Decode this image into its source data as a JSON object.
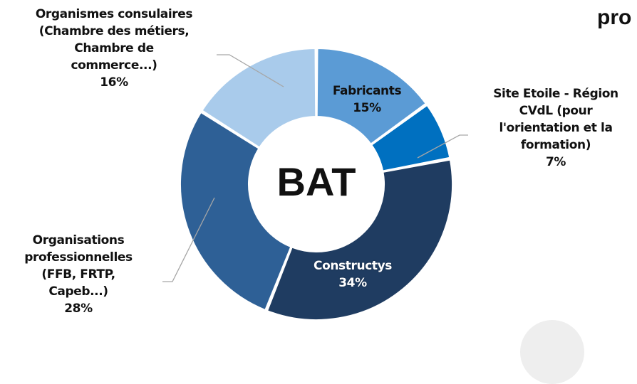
{
  "header_fragment": "pro",
  "chart_data": {
    "type": "donut",
    "center_label": "BAT",
    "slices": [
      {
        "label": [
          "Fabricants"
        ],
        "pct_text": "15%",
        "value": 15,
        "color": "#5b9bd5",
        "label_color": "dark"
      },
      {
        "label": [
          "Site Etoile - Région",
          "CVdL (pour",
          "l'orientation et la",
          "formation)"
        ],
        "pct_text": "7%",
        "value": 7,
        "color": "#0070c0",
        "label_color": "dark"
      },
      {
        "label": [
          "Constructys"
        ],
        "pct_text": "34%",
        "value": 34,
        "color": "#1f3c61",
        "label_color": "light"
      },
      {
        "label": [
          "Organisations",
          "professionnelles",
          "(FFB, FRTP,",
          "Capeb...)"
        ],
        "pct_text": "28%",
        "value": 28,
        "color": "#2e6096",
        "label_color": "dark"
      },
      {
        "label": [
          "Organismes consulaires",
          "(Chambre des métiers,",
          "Chambre de",
          "commerce...)"
        ],
        "pct_text": "16%",
        "value": 16,
        "color": "#a9cbeb",
        "label_color": "dark"
      }
    ]
  }
}
